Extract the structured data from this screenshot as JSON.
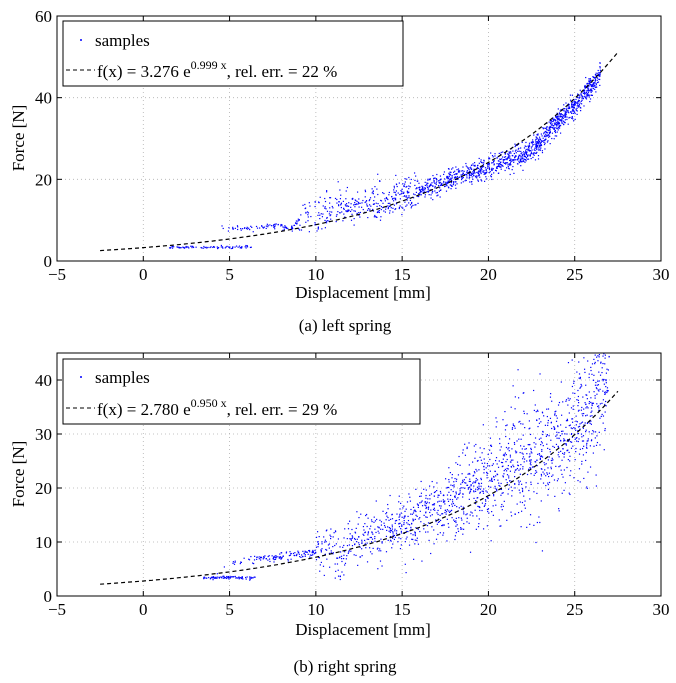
{
  "chart_data": [
    {
      "type": "scatter",
      "caption": "(a) left spring",
      "xlabel": "Displacement [mm]",
      "ylabel": "Force [N]",
      "xlim": [
        -5,
        30
      ],
      "ylim": [
        0,
        60
      ],
      "xticks": [
        -5,
        0,
        5,
        10,
        15,
        20,
        25,
        30
      ],
      "yticks": [
        0,
        20,
        40,
        60
      ],
      "grid": true,
      "legend_position": "top-left",
      "series": [
        {
          "name": "samples",
          "style": "points",
          "color": "#0000ff",
          "points_shown": 1600,
          "x": [
            0,
            0.1,
            0.2,
            0.5,
            1,
            2,
            3,
            4,
            5,
            6,
            7,
            8,
            8.5,
            9,
            10,
            11,
            12,
            13,
            14,
            15,
            16,
            17,
            18,
            19,
            20,
            21,
            22,
            23,
            24,
            25,
            26,
            26.5
          ],
          "y": [
            3.5,
            5.5,
            6,
            6.3,
            6.6,
            7,
            7.3,
            7.6,
            7.9,
            8.1,
            8.4,
            8.7,
            7.5,
            10,
            11.5,
            12.5,
            13,
            14,
            14.5,
            15.5,
            17,
            18.5,
            20,
            21.5,
            23,
            24.5,
            26,
            29,
            34,
            38,
            43,
            46
          ]
        },
        {
          "name": "f(x) = 3.276 e^(0.999 x), rel. err. = 22 %",
          "style": "dashed",
          "color": "#000000",
          "equation": {
            "a": 3.276,
            "b": 0.999,
            "x_scale": 0.1
          },
          "x_range": [
            -2.5,
            27.5
          ]
        }
      ],
      "legend": {
        "samples": "samples",
        "fit_prefix": "f(x) = 3.276 e",
        "fit_exponent": "0.999 x",
        "fit_suffix": ", rel. err. = 22 %"
      }
    },
    {
      "type": "scatter",
      "caption": "(b) right spring",
      "xlabel": "Displacement [mm]",
      "ylabel": "Force [N]",
      "xlim": [
        -5,
        30
      ],
      "ylim": [
        0,
        45
      ],
      "xticks": [
        -5,
        0,
        5,
        10,
        15,
        20,
        25,
        30
      ],
      "yticks": [
        0,
        10,
        20,
        30,
        40
      ],
      "grid": true,
      "legend_position": "top-left",
      "series": [
        {
          "name": "samples",
          "style": "points",
          "color": "#0000ff",
          "points_shown": 1600,
          "x": [
            0,
            0.2,
            1,
            2,
            3,
            4,
            5,
            6,
            7,
            8,
            9,
            10,
            11,
            11.5,
            12,
            13,
            14,
            15,
            16,
            17,
            18,
            19,
            20,
            21,
            22,
            23,
            24,
            25,
            26,
            26.5,
            27
          ],
          "y": [
            3.5,
            4.5,
            5,
            5.5,
            5.8,
            3.5,
            6.3,
            6.6,
            7,
            7.3,
            7.7,
            8,
            9,
            6.5,
            10,
            11,
            12,
            13,
            14,
            16,
            18,
            20,
            21,
            23,
            25,
            26,
            28,
            31,
            35,
            40,
            43
          ]
        },
        {
          "name": "f(x) = 2.780 e^(0.950 x), rel. err. = 29 %",
          "style": "dashed",
          "color": "#000000",
          "equation": {
            "a": 2.78,
            "b": 0.95,
            "x_scale": 0.1
          },
          "x_range": [
            -2.5,
            27.5
          ]
        }
      ],
      "legend": {
        "samples": "samples",
        "fit_prefix": "f(x) = 2.780 e",
        "fit_exponent": "0.950 x",
        "fit_suffix": ", rel. err. = 29 %"
      }
    }
  ]
}
